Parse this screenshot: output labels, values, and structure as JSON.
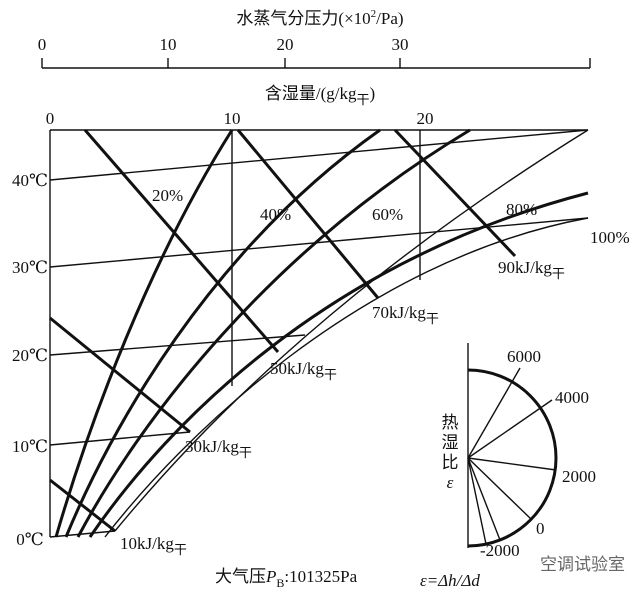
{
  "top_axis": {
    "title": "水蒸气分压力(×10",
    "title_sup": "2",
    "title_end": "/Pa)",
    "ticks": [
      "0",
      "10",
      "20",
      "30"
    ]
  },
  "moisture_axis": {
    "title": "含湿量/(g/kg",
    "title_sub": "干",
    "title_end": ")",
    "ticks": [
      "0",
      "10",
      "20"
    ]
  },
  "temperatures": [
    "40℃",
    "30℃",
    "20℃",
    "10℃",
    "0℃"
  ],
  "humidity_curves": [
    "20%",
    "40%",
    "60%",
    "80%",
    "100%"
  ],
  "enthalpy_lines": [
    {
      "label": "10kJ/kg",
      "sub": "干"
    },
    {
      "label": "30kJ/kg",
      "sub": "干"
    },
    {
      "label": "50kJ/kg",
      "sub": "干"
    },
    {
      "label": "70kJ/kg",
      "sub": "干"
    },
    {
      "label": "90kJ/kg",
      "sub": "干"
    }
  ],
  "pressure_note": {
    "prefix": "大气压",
    "symbol": "P",
    "sub": "B",
    "value": ":101325Pa"
  },
  "ratio_scale": {
    "title_chars": [
      "热",
      "湿",
      "比",
      "ε"
    ],
    "ticks": [
      "6000",
      "4000",
      "2000",
      "0",
      "-2000"
    ],
    "formula": "ε=Δh/Δd"
  },
  "watermark": "空调试验室"
}
